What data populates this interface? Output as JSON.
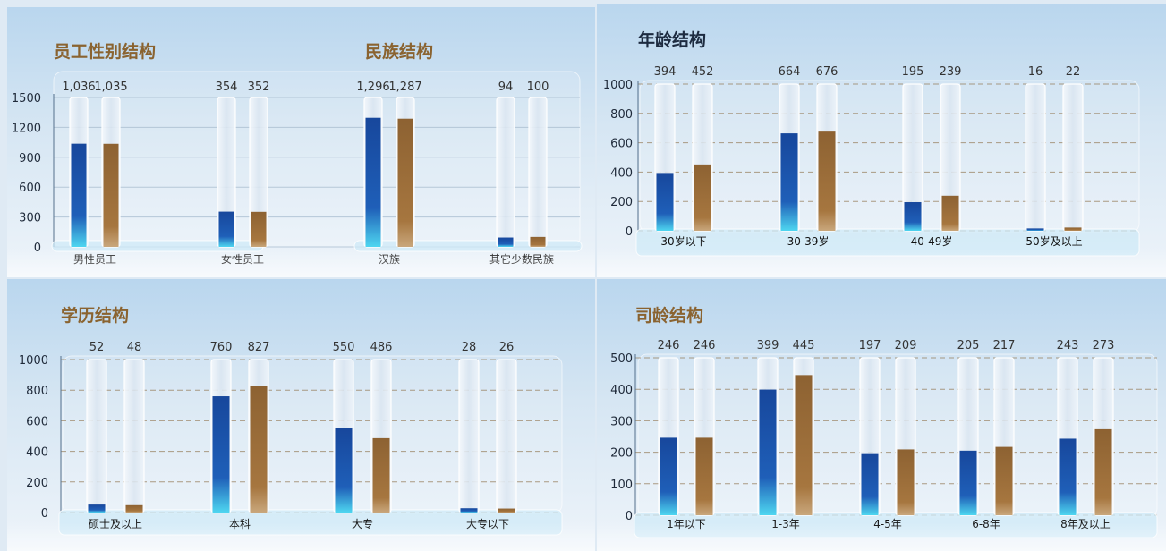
{
  "colors": {
    "blue": "#1f5fb8",
    "bronze": "#a6763f",
    "title_gold": "#8a6330",
    "title_dark": "#1d2b40"
  },
  "chart_data": [
    {
      "type": "bar",
      "title": "员工性别结构",
      "categories": [
        "男性员工",
        "女性员工"
      ],
      "series": [
        {
          "values": [
            1036,
            354
          ]
        },
        {
          "values": [
            1035,
            352
          ]
        }
      ],
      "value_labels": [
        [
          "1,036",
          "354"
        ],
        [
          "1,035",
          "352"
        ]
      ],
      "yticks": [
        "0",
        "300",
        "600",
        "900",
        "1200",
        "1500"
      ],
      "ylim": [
        0,
        1500
      ],
      "grid": true
    },
    {
      "type": "bar",
      "title": "民族结构",
      "categories": [
        "汉族",
        "其它少数民族"
      ],
      "series": [
        {
          "values": [
            1296,
            94
          ]
        },
        {
          "values": [
            1287,
            100
          ]
        }
      ],
      "value_labels": [
        [
          "1,296",
          "94"
        ],
        [
          "1,287",
          "100"
        ]
      ],
      "yticks": [],
      "ylim": [
        0,
        1500
      ],
      "grid": true
    },
    {
      "type": "bar",
      "title": "年龄结构",
      "categories": [
        "30岁以下",
        "30-39岁",
        "40-49岁",
        "50岁及以上"
      ],
      "series": [
        {
          "values": [
            394,
            664,
            195,
            16
          ]
        },
        {
          "values": [
            452,
            676,
            239,
            22
          ]
        }
      ],
      "value_labels": [
        [
          "394",
          "664",
          "195",
          "16"
        ],
        [
          "452",
          "676",
          "239",
          "22"
        ]
      ],
      "yticks": [
        "0",
        "200",
        "400",
        "600",
        "800",
        "1000"
      ],
      "ylim": [
        0,
        1000
      ],
      "grid": true
    },
    {
      "type": "bar",
      "title": "学历结构",
      "categories": [
        "硕士及以上",
        "本科",
        "大专",
        "大专以下"
      ],
      "series": [
        {
          "values": [
            52,
            760,
            550,
            28
          ]
        },
        {
          "values": [
            48,
            827,
            486,
            26
          ]
        }
      ],
      "value_labels": [
        [
          "52",
          "760",
          "550",
          "28"
        ],
        [
          "48",
          "827",
          "486",
          "26"
        ]
      ],
      "yticks": [
        "0",
        "200",
        "400",
        "600",
        "800",
        "1000"
      ],
      "ylim": [
        0,
        1000
      ],
      "grid": true
    },
    {
      "type": "bar",
      "title": "司龄结构",
      "categories": [
        "1年以下",
        "1-3年",
        "4-5年",
        "6-8年",
        "8年及以上"
      ],
      "series": [
        {
          "values": [
            246,
            399,
            197,
            205,
            243
          ]
        },
        {
          "values": [
            246,
            445,
            209,
            217,
            273
          ]
        }
      ],
      "value_labels": [
        [
          "246",
          "399",
          "197",
          "205",
          "243"
        ],
        [
          "246",
          "445",
          "209",
          "217",
          "273"
        ]
      ],
      "yticks": [
        "0",
        "100",
        "200",
        "300",
        "400",
        "500"
      ],
      "ylim": [
        0,
        500
      ],
      "grid": true
    }
  ]
}
